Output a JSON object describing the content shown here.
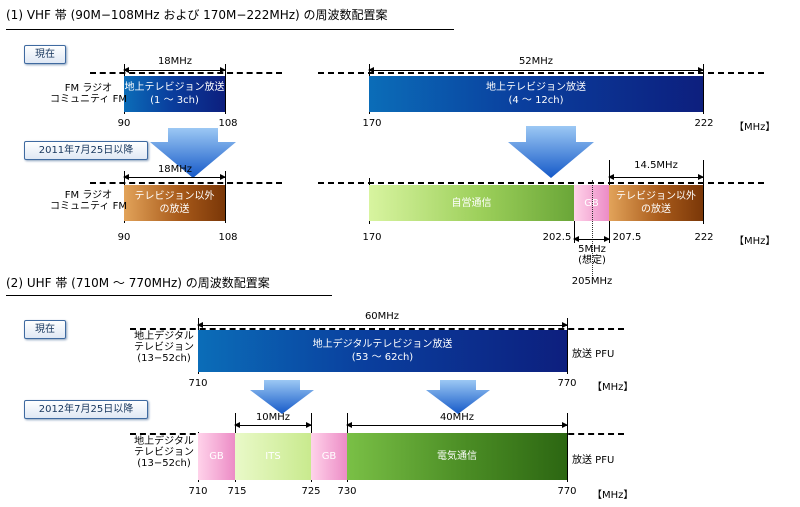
{
  "vhf": {
    "heading": "(1) VHF 帯 (90M−108MHz および 170M−222MHz) の周波数配置案",
    "now_tag": "現在",
    "after_tag": "2011年7月25日以降",
    "fm_label_line1": "FM ラジオ",
    "fm_label_line2": "コミュニティ FM",
    "now": {
      "low_width": "18MHz",
      "low_band_line1": "地上テレビジョン放送",
      "low_band_line2": "(1 〜 3ch)",
      "high_width": "52MHz",
      "high_band_line1": "地上テレビジョン放送",
      "high_band_line2": "(4 〜 12ch)",
      "ticks": [
        "90",
        "108",
        "170",
        "222"
      ],
      "unit": "【MHz】"
    },
    "after": {
      "low_width": "18MHz",
      "low_band_line1": "テレビジョン以外",
      "low_band_line2": "の放送",
      "jiei": "自営通信",
      "gb": "GB",
      "high_band_line1": "テレビジョン以外",
      "high_band_line2": "の放送",
      "high_width": "14.5MHz",
      "gb_note_line1": "5MHz",
      "gb_note_line2": "(想定)",
      "ticks": [
        "90",
        "108",
        "170",
        "202.5",
        "207.5",
        "222"
      ],
      "tick_205": "205MHz",
      "unit": "【MHz】"
    }
  },
  "uhf": {
    "heading": "(2) UHF 帯 (710M 〜 770MHz) の周波数配置案",
    "now_tag": "現在",
    "after_tag": "2012年7月25日以降",
    "side_line1": "地上デジタル",
    "side_line2": "テレビジョン",
    "side_line3": "(13−52ch)",
    "right_label": "放送 PFU",
    "now": {
      "width": "60MHz",
      "band_line1": "地上デジタルテレビジョン放送",
      "band_line2": "(53 〜 62ch)",
      "ticks": [
        "710",
        "770"
      ],
      "unit": "【MHz】"
    },
    "after": {
      "gb1": "GB",
      "its": "ITS",
      "gb2": "GB",
      "denki": "電気通信",
      "its_width": "10MHz",
      "denki_width": "40MHz",
      "ticks": [
        "710",
        "715",
        "725",
        "730",
        "770"
      ],
      "unit": "【MHz】"
    }
  },
  "colors": {
    "tv_blue": "#0a3f9e",
    "brown": "#a85a1a",
    "green": "#9ccf5a",
    "pink": "#ec8cc6",
    "arrow_blue": "#1e73d8"
  }
}
